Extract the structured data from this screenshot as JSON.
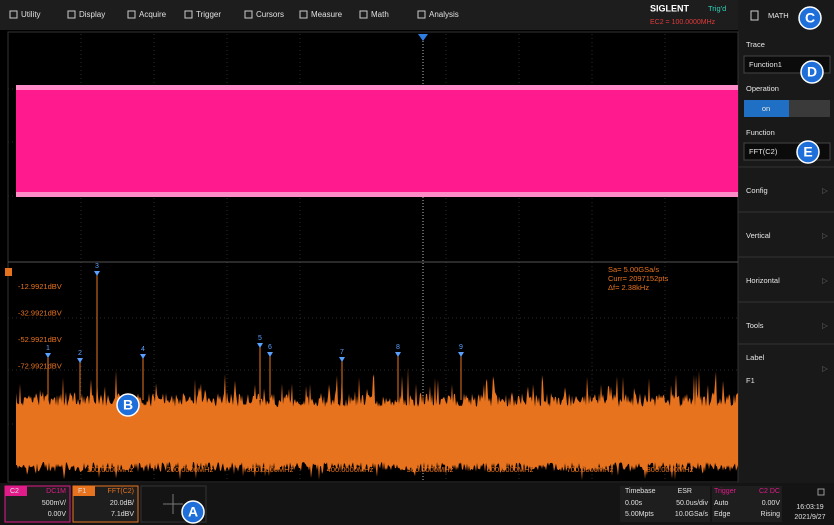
{
  "menu": [
    "Utility",
    "Display",
    "Acquire",
    "Trigger",
    "Cursors",
    "Measure",
    "Math",
    "Analysis"
  ],
  "status": {
    "brand": "SIGLENT",
    "trigger_state": "Trig'd",
    "frequency": "EC2 = 100.0000MHz"
  },
  "panel": {
    "title": "MATH",
    "trace_label": "Trace",
    "trace_value": "Function1",
    "operation_label": "Operation",
    "operation_value": "on",
    "function_label": "Function",
    "function_value": "FFT(C2)",
    "items": [
      "Config",
      "Vertical",
      "Horizontal",
      "Tools"
    ],
    "label_title": "Label",
    "label_value": "F1"
  },
  "fft": {
    "levels": [
      "-12.9921dBV",
      "-32.9921dBV",
      "-52.9921dBV",
      "-72.9921dBV"
    ],
    "frequencies": [
      "100.0000MHz",
      "200.0000MHz",
      "300.0000MHz",
      "400.0000MHz",
      "500.0000MHz",
      "600.0000MHz",
      "700.0000MHz",
      "800.0000MHz"
    ],
    "info": [
      "Sa= 5.00GSa/s",
      "Curr= 2097152pts",
      "Δf= 2.38kHz"
    ],
    "peaks": [
      "1",
      "2",
      "3",
      "4",
      "5",
      "6",
      "7",
      "8",
      "9"
    ]
  },
  "channels": [
    {
      "name": "C2",
      "coupling": "DC1M",
      "scale": "500mV/",
      "offset": "0.00V"
    },
    {
      "name": "F1",
      "source": "FFT(C2)",
      "scale": "20.0dB/",
      "offset": "7.1dBV"
    }
  ],
  "timebase": {
    "title": "Timebase",
    "mode": "ESR",
    "delay": "0.00s",
    "scale": "50.0us/div",
    "memory": "5.00Mpts",
    "rate": "10.0GSa/s"
  },
  "trigger": {
    "title": "Trigger",
    "source": "C2 DC",
    "mode": "Auto",
    "level": "0.00V",
    "type": "Edge",
    "slope": "Rising"
  },
  "clock": {
    "time": "16:03:19",
    "date": "2021/9/27"
  },
  "callouts": [
    "A",
    "B",
    "C",
    "D",
    "E"
  ]
}
